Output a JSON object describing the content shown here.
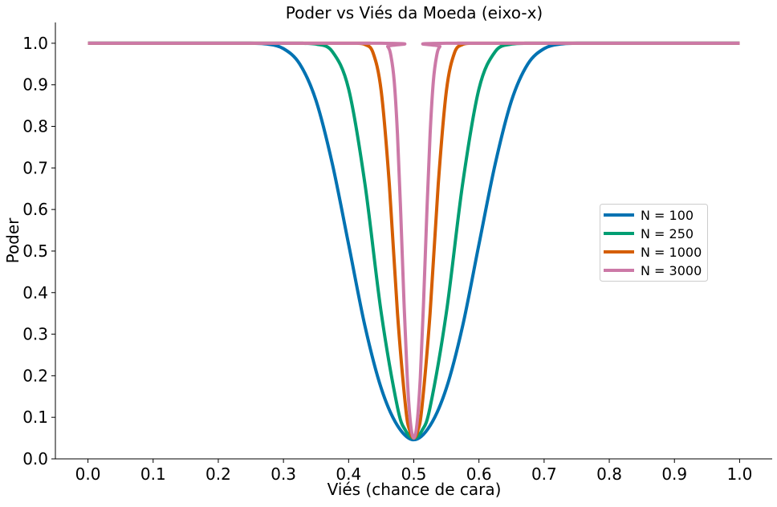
{
  "chart_data": {
    "type": "line",
    "title": "Poder vs Viés da Moeda (eixo-x)",
    "xlabel": "Viés (chance de cara)",
    "ylabel": "Poder",
    "xlim": [
      -0.05,
      1.05
    ],
    "ylim": [
      0,
      1.05
    ],
    "xticks": [
      "0.0",
      "0.1",
      "0.2",
      "0.3",
      "0.4",
      "0.5",
      "0.6",
      "0.7",
      "0.8",
      "0.9",
      "1.0"
    ],
    "yticks": [
      "0.0",
      "0.1",
      "0.2",
      "0.3",
      "0.4",
      "0.5",
      "0.6",
      "0.7",
      "0.8",
      "0.9",
      "1.0"
    ],
    "grid": false,
    "legend_position": "center-right",
    "series": [
      {
        "name": "N = 100",
        "color": "#0072B2",
        "x": [
          0,
          0.2,
          0.25,
          0.275,
          0.3,
          0.325,
          0.35,
          0.375,
          0.4,
          0.425,
          0.45,
          0.475,
          0.5,
          0.525,
          0.55,
          0.575,
          0.6,
          0.625,
          0.65,
          0.675,
          0.7,
          0.725,
          0.75,
          0.8,
          1
        ],
        "y": [
          1,
          1,
          1,
          0.998,
          0.987,
          0.95,
          0.862,
          0.71,
          0.516,
          0.32,
          0.17,
          0.08,
          0.046,
          0.08,
          0.17,
          0.32,
          0.516,
          0.71,
          0.862,
          0.95,
          0.987,
          0.998,
          1,
          1,
          1
        ]
      },
      {
        "name": "N = 250",
        "color": "#009E73",
        "x": [
          0,
          0.3,
          0.325,
          0.35,
          0.375,
          0.4,
          0.425,
          0.45,
          0.475,
          0.4875,
          0.5,
          0.5125,
          0.525,
          0.55,
          0.575,
          0.6,
          0.625,
          0.65,
          0.675,
          0.7,
          1
        ],
        "y": [
          1,
          1,
          1,
          0.998,
          0.98,
          0.89,
          0.662,
          0.352,
          0.124,
          0.068,
          0.05,
          0.068,
          0.124,
          0.352,
          0.662,
          0.89,
          0.98,
          0.998,
          1,
          1,
          1
        ]
      },
      {
        "name": "N = 1000",
        "color": "#D55E00",
        "x": [
          0,
          0.4,
          0.4125,
          0.425,
          0.4375,
          0.45,
          0.4625,
          0.475,
          0.4875,
          0.49375,
          0.5,
          0.50625,
          0.5125,
          0.525,
          0.5375,
          0.55,
          0.5625,
          0.575,
          0.5875,
          0.6,
          1
        ],
        "y": [
          1,
          1,
          1,
          0.997,
          0.977,
          0.885,
          0.66,
          0.35,
          0.124,
          0.068,
          0.05,
          0.068,
          0.124,
          0.35,
          0.66,
          0.885,
          0.977,
          0.997,
          1,
          1,
          1
        ]
      },
      {
        "name": "N = 3000",
        "color": "#CC79A7",
        "x": [
          0,
          0.45,
          0.46,
          0.465,
          0.47,
          0.475,
          0.48,
          0.485,
          0.49,
          0.495,
          0.5,
          0.505,
          0.51,
          0.515,
          0.52,
          0.525,
          0.53,
          0.535,
          0.54,
          0.55,
          1
        ],
        "y": [
          1,
          1,
          0.992,
          0.969,
          0.908,
          0.78,
          0.59,
          0.376,
          0.195,
          0.085,
          0.05,
          0.085,
          0.195,
          0.376,
          0.59,
          0.78,
          0.908,
          0.969,
          0.992,
          1,
          1
        ]
      }
    ]
  }
}
